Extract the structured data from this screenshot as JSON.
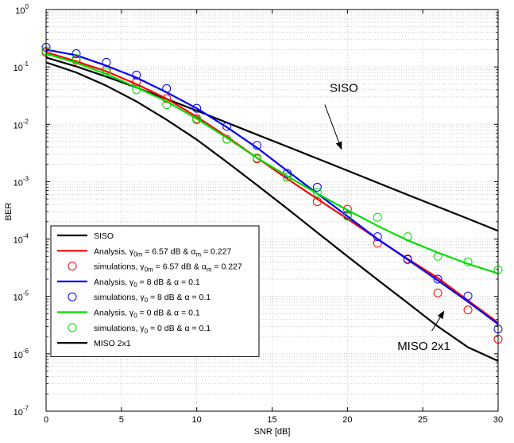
{
  "chart_data": {
    "type": "line",
    "title": "",
    "xlabel": "SNR [dB]",
    "ylabel": "BER",
    "xlim": [
      0,
      30
    ],
    "ylim_log10": [
      -7,
      0
    ],
    "y_scale": "log",
    "grid": "major and minor, dotted",
    "x_ticks": [
      0,
      5,
      10,
      15,
      20,
      25,
      30
    ],
    "x_tick_labels": [
      "0",
      "5",
      "10",
      "15",
      "20",
      "25",
      "30"
    ],
    "y_tick_labels": [
      {
        "base": "10",
        "exp": "0"
      },
      {
        "base": "10",
        "exp": "-1"
      },
      {
        "base": "10",
        "exp": "-2"
      },
      {
        "base": "10",
        "exp": "-3"
      },
      {
        "base": "10",
        "exp": "-4"
      },
      {
        "base": "10",
        "exp": "-5"
      },
      {
        "base": "10",
        "exp": "-6"
      },
      {
        "base": "10",
        "exp": "-7"
      }
    ],
    "legend_position": "bottom-left",
    "colors": {
      "black": "#000000",
      "red": "#ff0000",
      "blue": "#0000ff",
      "green": "#00dd00",
      "grid": "#b8b8b8"
    },
    "series": [
      {
        "legend": "SISO",
        "style": "line",
        "color": "black",
        "x": [
          0,
          2,
          4,
          6,
          8,
          10,
          12,
          14,
          16,
          18,
          20,
          22,
          24,
          26,
          28,
          30
        ],
        "y": [
          0.146,
          0.102,
          0.0676,
          0.0436,
          0.0276,
          0.0173,
          0.0107,
          0.0066,
          0.0041,
          0.00253,
          0.00156,
          0.00096,
          0.00059,
          0.000365,
          0.000226,
          0.000139
        ]
      },
      {
        "legend": "Analysis, γ0m = 6.57 dB & αm = 0.227",
        "legend_parts": [
          "Analysis, γ",
          "0m",
          " = 6.57 dB & α",
          "m",
          " = 0.227"
        ],
        "style": "line",
        "color": "red",
        "x": [
          0,
          2,
          4,
          6,
          8,
          10,
          12,
          14,
          16,
          18,
          20,
          22,
          24,
          26,
          28,
          30
        ],
        "y": [
          0.18,
          0.125,
          0.084,
          0.05,
          0.028,
          0.0135,
          0.0061,
          0.0026,
          0.00113,
          0.0005,
          0.000225,
          0.0001,
          4.5e-05,
          2.1e-05,
          8.5e-06,
          3.5e-06
        ]
      },
      {
        "legend": "simulations, γ0m = 6.57 dB & αm = 0.227",
        "legend_parts": [
          "simulations, γ",
          "0m",
          " = 6.57 dB & α",
          "m",
          " = 0.227"
        ],
        "style": "marker",
        "color": "red",
        "x": [
          0,
          2,
          4,
          6,
          8,
          10,
          12,
          14,
          16,
          18,
          20,
          22,
          24,
          26,
          28,
          30
        ],
        "y": [
          0.18,
          0.13,
          0.09,
          0.055,
          0.028,
          0.0125,
          0.0055,
          0.0025,
          0.0012,
          0.00045,
          0.00033,
          8.5e-05,
          4.5e-05,
          1.15e-05,
          5.8e-06,
          1.8e-06
        ]
      },
      {
        "legend": "Analysis, γ0 = 8 dB & α = 0.1",
        "legend_parts": [
          "Analysis, γ",
          "0",
          " = 8 dB & α = 0.1",
          "",
          ""
        ],
        "style": "line",
        "color": "blue",
        "x": [
          0,
          2,
          4,
          6,
          8,
          10,
          12,
          14,
          16,
          18,
          20,
          22,
          24,
          26,
          28,
          30
        ],
        "y": [
          0.2,
          0.16,
          0.105,
          0.065,
          0.036,
          0.019,
          0.0089,
          0.0039,
          0.00155,
          0.00062,
          0.00025,
          0.0001,
          4.4e-05,
          1.9e-05,
          8.1e-06,
          3.3e-06
        ]
      },
      {
        "legend": "simulations, γ0 = 8 dB & α = 0.1",
        "legend_parts": [
          "simulations, γ",
          "0",
          " = 8 dB & α = 0.1",
          "",
          ""
        ],
        "style": "marker",
        "color": "blue",
        "x": [
          0,
          2,
          4,
          6,
          8,
          10,
          12,
          14,
          16,
          18,
          20,
          22,
          24,
          26,
          28,
          30
        ],
        "y": [
          0.22,
          0.17,
          0.12,
          0.072,
          0.042,
          0.019,
          0.0092,
          0.0043,
          0.0014,
          0.0008,
          0.00026,
          0.00011,
          4.4e-05,
          2e-05,
          1.02e-05,
          2.7e-06
        ]
      },
      {
        "legend": "Analysis, γ0 = 0 dB & α = 0.1",
        "legend_parts": [
          "Analysis, γ",
          "0",
          " = 0 dB & α = 0.1",
          "",
          ""
        ],
        "style": "line",
        "color": "green",
        "x": [
          0,
          2,
          4,
          6,
          8,
          10,
          12,
          14,
          16,
          18,
          20,
          22,
          24,
          26,
          28,
          30
        ],
        "y": [
          0.17,
          0.118,
          0.075,
          0.044,
          0.025,
          0.0125,
          0.0058,
          0.0026,
          0.00125,
          0.00062,
          0.00032,
          0.00017,
          9.5e-05,
          5.8e-05,
          3.7e-05,
          2.5e-05
        ]
      },
      {
        "legend": "simulations, γ0 = 0 dB & α = 0.1",
        "legend_parts": [
          "simulations, γ",
          "0",
          " = 0 dB & α = 0.1",
          "",
          ""
        ],
        "style": "marker",
        "color": "green",
        "x": [
          0,
          2,
          4,
          6,
          8,
          10,
          12,
          14,
          16,
          18,
          20,
          22,
          24,
          26,
          28,
          30
        ],
        "y": [
          0.19,
          0.14,
          0.082,
          0.04,
          0.022,
          0.012,
          0.0055,
          0.0026,
          0.0012,
          0.00065,
          0.00025,
          0.00024,
          0.00011,
          5e-05,
          4e-05,
          2.9e-05
        ]
      },
      {
        "legend": "MISO 2x1",
        "style": "line",
        "color": "black",
        "x": [
          0,
          2,
          4,
          6,
          8,
          10,
          12,
          14,
          16,
          18,
          20,
          22,
          24,
          26,
          28,
          30
        ],
        "y": [
          0.12,
          0.08,
          0.047,
          0.025,
          0.012,
          0.0054,
          0.0022,
          0.00087,
          0.00034,
          0.00013,
          5e-05,
          1.95e-05,
          7.7e-06,
          3e-06,
          1.3e-06,
          7.5e-07
        ]
      }
    ],
    "annotations": [
      {
        "text": "SISO",
        "arrow_from": [
          18.5,
          0.022
        ],
        "arrow_to": [
          19.6,
          0.0037
        ]
      },
      {
        "text": "MISO 2x1",
        "arrow_from": [
          25.6,
          2.5e-06
        ],
        "arrow_to": [
          26.4,
          5.5e-06
        ]
      }
    ]
  }
}
